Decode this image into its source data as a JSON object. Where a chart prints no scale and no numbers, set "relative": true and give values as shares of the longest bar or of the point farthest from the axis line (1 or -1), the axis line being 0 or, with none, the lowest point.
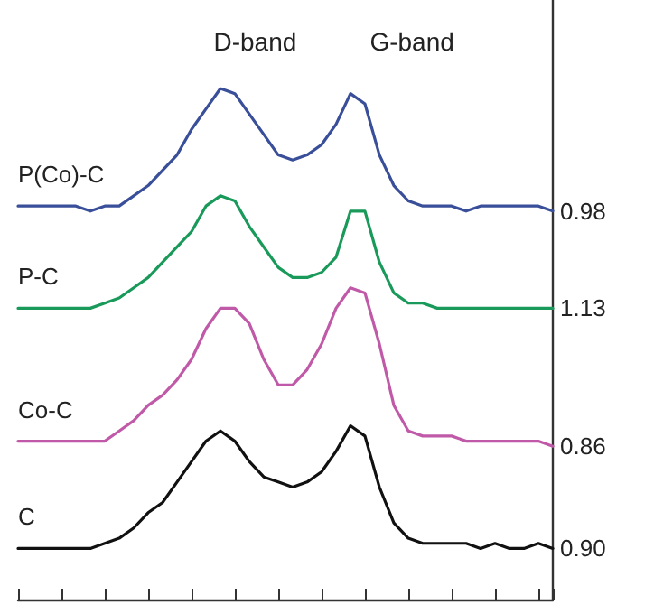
{
  "chart_data": {
    "type": "line",
    "relative": true,
    "marker": "none",
    "line_style": "solid",
    "categories": [
      null,
      null,
      null,
      null,
      null,
      null,
      null,
      null,
      null,
      null,
      null,
      null,
      null,
      null,
      null,
      null,
      null,
      null,
      null,
      null,
      null,
      null,
      null,
      null,
      null,
      null,
      null,
      null,
      null,
      null,
      null,
      null,
      null,
      null,
      null,
      null,
      null,
      null
    ],
    "series": [
      {
        "name": "P(Co)-C",
        "color": "#3a4f9a",
        "values": [
          0.77,
          0.77,
          0.77,
          0.77,
          0.77,
          0.76,
          0.77,
          0.77,
          0.79,
          0.81,
          0.84,
          0.87,
          0.92,
          0.96,
          1.0,
          0.99,
          0.95,
          0.91,
          0.87,
          0.86,
          0.87,
          0.89,
          0.93,
          0.99,
          0.97,
          0.87,
          0.81,
          0.78,
          0.77,
          0.77,
          0.77,
          0.76,
          0.77,
          0.77,
          0.77,
          0.77,
          0.77,
          0.76
        ]
      },
      {
        "name": "P-C",
        "color": "#1a9a5a",
        "values": [
          0.57,
          0.57,
          0.57,
          0.57,
          0.57,
          0.57,
          0.58,
          0.59,
          0.61,
          0.63,
          0.66,
          0.69,
          0.72,
          0.77,
          0.79,
          0.78,
          0.73,
          0.69,
          0.65,
          0.63,
          0.63,
          0.64,
          0.67,
          0.76,
          0.76,
          0.66,
          0.6,
          0.58,
          0.58,
          0.57,
          0.57,
          0.57,
          0.57,
          0.57,
          0.57,
          0.57,
          0.57,
          0.57
        ]
      },
      {
        "name": "Co-C",
        "color": "#c05aa8",
        "values": [
          0.31,
          0.31,
          0.31,
          0.31,
          0.31,
          0.31,
          0.31,
          0.33,
          0.35,
          0.38,
          0.4,
          0.43,
          0.47,
          0.53,
          0.57,
          0.57,
          0.54,
          0.47,
          0.42,
          0.42,
          0.45,
          0.5,
          0.57,
          0.61,
          0.6,
          0.5,
          0.38,
          0.33,
          0.32,
          0.32,
          0.32,
          0.31,
          0.31,
          0.31,
          0.31,
          0.31,
          0.31,
          0.3
        ]
      },
      {
        "name": "C",
        "color": "#111111",
        "values": [
          0.1,
          0.1,
          0.1,
          0.1,
          0.1,
          0.1,
          0.11,
          0.12,
          0.14,
          0.17,
          0.19,
          0.23,
          0.27,
          0.31,
          0.33,
          0.31,
          0.27,
          0.24,
          0.23,
          0.22,
          0.23,
          0.25,
          0.29,
          0.34,
          0.32,
          0.22,
          0.15,
          0.12,
          0.11,
          0.11,
          0.11,
          0.11,
          0.1,
          0.11,
          0.1,
          0.1,
          0.11,
          0.1
        ]
      }
    ],
    "annotations": [
      "D-band",
      "G-band",
      "0.98",
      "1.13",
      "0.86",
      "0.90"
    ]
  }
}
